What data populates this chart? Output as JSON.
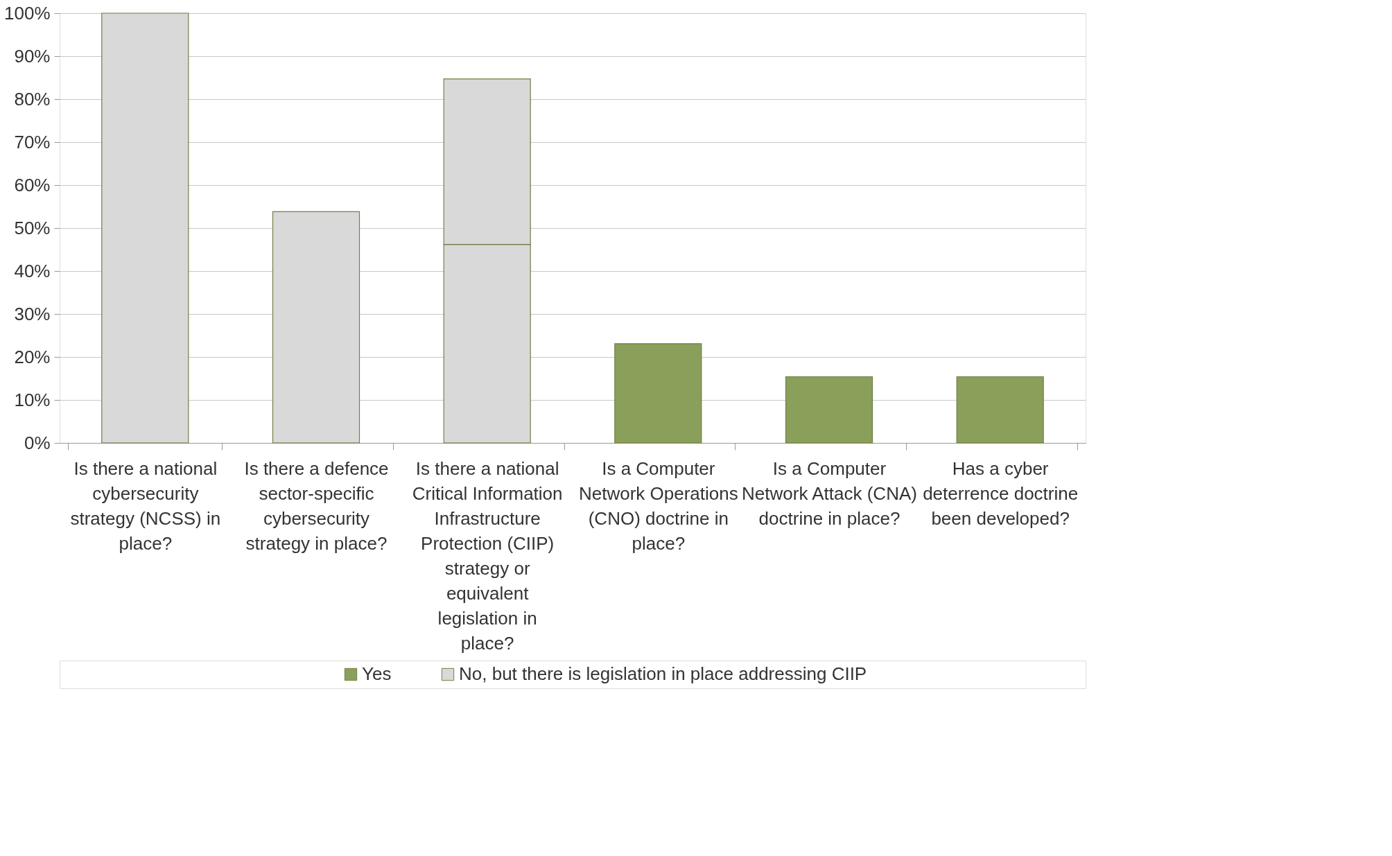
{
  "chart_data": {
    "type": "bar",
    "stacked": true,
    "categories": [
      "Is there a national cybersecurity strategy (NCSS) in place?",
      "Is there a defence sector-specific cybersecurity strategy in place?",
      "Is there a national Critical Information Infrastructure Protection (CIIP) strategy or equivalent legislation in place?",
      "Is a Computer Network Operations (CNO) doctrine in place?",
      "Is a Computer Network Attack (CNA) doctrine in place?",
      "Has a cyber deterrence doctrine been developed?"
    ],
    "series": [
      {
        "name": "Yes",
        "color": "#8aa05a",
        "colors": [
          "#d9d9d9",
          "#d9d9d9",
          "#d9d9d9",
          "#8aa05a",
          "#8aa05a",
          "#8aa05a"
        ],
        "values": [
          100,
          53.8,
          46.2,
          23.1,
          15.4,
          15.4
        ]
      },
      {
        "name": "No, but there is legislation in place addressing CIIP",
        "color": "#d9d9d9",
        "values": [
          null,
          null,
          38.5,
          null,
          null,
          null
        ]
      }
    ],
    "ylim": [
      0,
      100
    ],
    "yticks": [
      {
        "value": 0,
        "label": "0%"
      },
      {
        "value": 10,
        "label": "10%"
      },
      {
        "value": 20,
        "label": "20%"
      },
      {
        "value": 30,
        "label": "30%"
      },
      {
        "value": 40,
        "label": "40%"
      },
      {
        "value": 50,
        "label": "50%"
      },
      {
        "value": 60,
        "label": "60%"
      },
      {
        "value": 70,
        "label": "70%"
      },
      {
        "value": 80,
        "label": "80%"
      },
      {
        "value": 90,
        "label": "90%"
      },
      {
        "value": 100,
        "label": "100%"
      }
    ],
    "grid": "y",
    "legend": "bottom"
  }
}
